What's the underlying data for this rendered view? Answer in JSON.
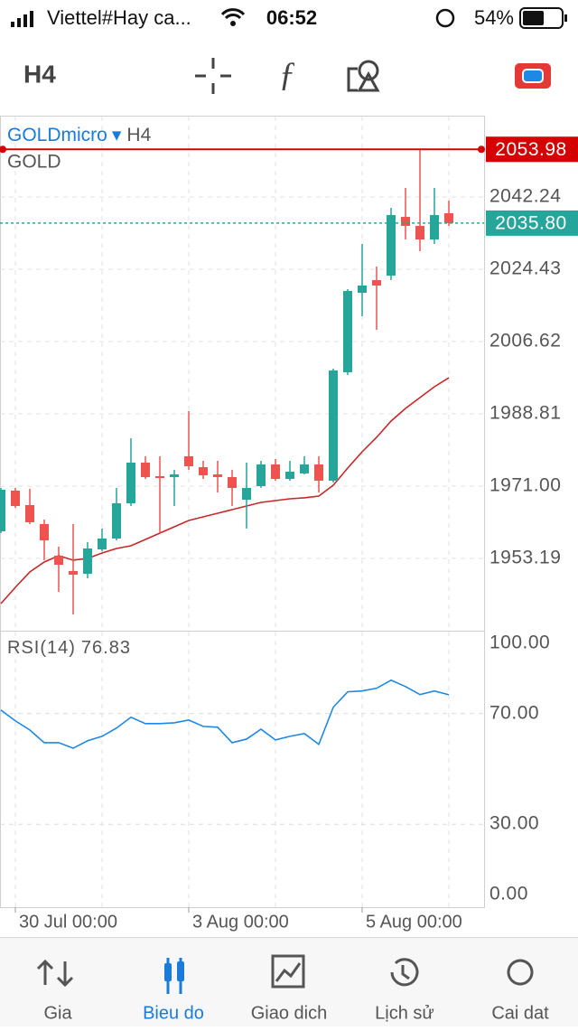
{
  "status_bar": {
    "carrier": "Viettel#Hay ca...",
    "time": "06:52",
    "battery": "54%"
  },
  "toolbar": {
    "timeframe": "H4"
  },
  "chart_data": [
    {
      "type": "candlestick",
      "symbol": "GOLDmicro",
      "symbol_arrow": "▾",
      "timeframe": "H4",
      "description": "GOLD",
      "categories": [
        null,
        "30 Jul 00:00",
        null,
        null,
        null,
        null,
        null,
        null,
        null,
        null,
        null,
        null,
        null,
        "3 Aug 00:00",
        null,
        null,
        null,
        null,
        null,
        null,
        null,
        null,
        null,
        null,
        null,
        "5 Aug 00:00",
        null,
        null,
        null,
        null,
        null,
        null
      ],
      "open": [
        1959.87,
        1969.89,
        1966.33,
        1961.65,
        1953.86,
        1950.08,
        1949.41,
        1955.42,
        1958.09,
        1966.77,
        1976.79,
        1973.45,
        1973.23,
        1978.35,
        1975.67,
        1973.89,
        1973.23,
        1967.66,
        1971.0,
        1976.34,
        1972.78,
        1974.12,
        1976.34,
        1972.34,
        1999.05,
        2018.64,
        2021.75,
        2022.87,
        2037.33,
        2035.11,
        2031.77,
        2038.23
      ],
      "high": [
        1970.55,
        1970.55,
        1970.33,
        1962.76,
        1956.09,
        1961.65,
        1957.2,
        1960.54,
        1970.55,
        1982.8,
        1978.35,
        1978.35,
        1975.0,
        1989.48,
        1977.23,
        1977.23,
        1975.0,
        1976.79,
        1977.23,
        1977.68,
        1977.23,
        1978.35,
        1978.35,
        1999.94,
        2019.53,
        2030.66,
        2025.09,
        2039.56,
        2044.46,
        2053.98,
        2044.46,
        2041.34
      ],
      "low": [
        1959.42,
        1965.66,
        1961.65,
        1952.75,
        1944.96,
        1939.39,
        1948.29,
        1954.97,
        1957.64,
        1966.1,
        1972.78,
        1959.42,
        1966.1,
        1975.0,
        1972.78,
        1969.44,
        1966.1,
        1960.54,
        1970.55,
        1972.34,
        1972.34,
        1973.89,
        1969.44,
        1971.89,
        1998.38,
        2012.85,
        2009.51,
        2021.75,
        2031.77,
        2028.88,
        2030.66,
        2035.11
      ],
      "close": [
        1970.11,
        1966.1,
        1962.1,
        1957.64,
        1951.63,
        1949.19,
        1955.64,
        1958.09,
        1966.77,
        1976.79,
        1973.23,
        1973.0,
        1973.89,
        1975.9,
        1973.67,
        1973.23,
        1970.55,
        1970.55,
        1976.34,
        1972.78,
        1974.56,
        1976.34,
        1972.34,
        1999.49,
        2019.08,
        2020.42,
        2020.42,
        2037.78,
        2035.11,
        2031.77,
        2037.78,
        2035.8
      ],
      "up_color": "#26a69a",
      "down_color": "#ef5350",
      "ma": {
        "color": "#c62828",
        "values": [
          1942.06,
          1946.07,
          1949.85,
          1952.3,
          1953.86,
          1952.75,
          1953.2,
          1954.53,
          1955.64,
          1956.31,
          1957.87,
          1959.42,
          1960.98,
          1962.54,
          1963.43,
          1964.32,
          1965.21,
          1966.1,
          1966.99,
          1967.44,
          1967.88,
          1968.11,
          1968.55,
          1971.22,
          1975.45,
          1979.46,
          1983.02,
          1987.03,
          1990.14,
          1992.82,
          1995.49,
          1997.71
        ]
      },
      "ylim": [
        1935.38,
        2062.27
      ],
      "yticks": [
        1953.19,
        {
          "value": 1971.0,
          "label": "1971.00"
        },
        1988.81,
        2006.62,
        2024.43,
        2042.24
      ],
      "high_line": {
        "value": 2053.98,
        "color": "#d50000"
      },
      "price_line": {
        "value": 2035.8,
        "label": "2035.80",
        "color": "#26a69a"
      },
      "grid": true
    },
    {
      "type": "line",
      "series": [
        {
          "name": "RSI(14)",
          "color": "#1e88e5",
          "values": [
            71.3,
            67.4,
            64.1,
            59.5,
            59.5,
            57.5,
            60.2,
            61.8,
            64.8,
            68.7,
            66.4,
            66.4,
            66.7,
            67.7,
            65.4,
            65.1,
            59.5,
            60.8,
            64.4,
            60.5,
            61.8,
            62.8,
            58.9,
            72.3,
            77.9,
            78.2,
            79.2,
            82.1,
            79.8,
            76.9,
            78.2,
            76.83
          ]
        }
      ],
      "ylim": [
        0,
        100
      ],
      "yticks": [
        {
          "value": 0,
          "label": "0.00"
        },
        {
          "value": 30,
          "label": "30.00"
        },
        {
          "value": 70,
          "label": "70.00"
        },
        {
          "value": 100,
          "label": "100.00"
        }
      ],
      "grid": true
    }
  ],
  "nav": {
    "items": [
      "Gia",
      "Bieu do",
      "Giao dich",
      "Lịch sử",
      "Cai dat"
    ],
    "active": 1
  }
}
